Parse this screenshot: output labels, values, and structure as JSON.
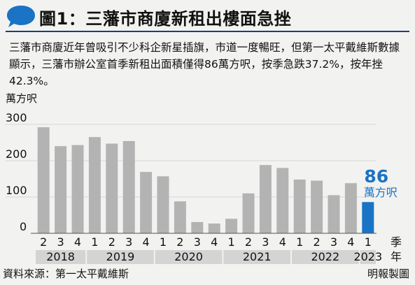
{
  "header": {
    "title": "圖1：三藩市商廈新租出樓面急挫",
    "description": "三藩市商廈近年曾吸引不少科企新星插旗，市道一度暢旺，但第一太平戴維斯數據顯示，三藩市辦公室首季新租出面積僅得86萬方呎，按季急跌37.2%，按年挫42.3%。"
  },
  "chart_data": {
    "type": "bar",
    "ylabel": "萬方呎",
    "xlabel_quarter": "季",
    "xlabel_year": "年",
    "ylim": [
      0,
      300
    ],
    "yticks": [
      0,
      100,
      200,
      300
    ],
    "categories": [
      "2018 Q2",
      "2018 Q3",
      "2018 Q4",
      "2019 Q1",
      "2019 Q2",
      "2019 Q3",
      "2019 Q4",
      "2020 Q1",
      "2020 Q2",
      "2020 Q3",
      "2020 Q4",
      "2021 Q1",
      "2021 Q2",
      "2021 Q3",
      "2021 Q4",
      "2022 Q1",
      "2022 Q2",
      "2022 Q3",
      "2022 Q4",
      "2023 Q1"
    ],
    "quarter_labels": [
      "2",
      "3",
      "4",
      "1",
      "2",
      "3",
      "4",
      "1",
      "2",
      "3",
      "4",
      "1",
      "2",
      "3",
      "4",
      "1",
      "2",
      "3",
      "4",
      "1"
    ],
    "values": [
      292,
      240,
      243,
      265,
      247,
      254,
      169,
      157,
      88,
      31,
      27,
      40,
      110,
      188,
      180,
      148,
      145,
      105,
      138,
      86
    ],
    "highlight_index": 19,
    "highlight_value_label": "86",
    "highlight_unit_label": "萬方呎",
    "years": [
      {
        "label": "2018",
        "start": 0,
        "count": 3
      },
      {
        "label": "2019",
        "start": 3,
        "count": 4
      },
      {
        "label": "2020",
        "start": 7,
        "count": 4
      },
      {
        "label": "2021",
        "start": 11,
        "count": 4
      },
      {
        "label": "2022",
        "start": 15,
        "count": 4
      },
      {
        "label": "2023",
        "start": 19,
        "count": 1
      }
    ],
    "colors": {
      "bar": "#b3b3b3",
      "highlight": "#1a73c4",
      "gridline": "#d6d6d6",
      "year_band": "#d4d4d4",
      "title_rule": "#1a3f7a"
    }
  },
  "footer": {
    "source": "資料來源：第一太平戴維斯",
    "credit": "明報製圖"
  }
}
